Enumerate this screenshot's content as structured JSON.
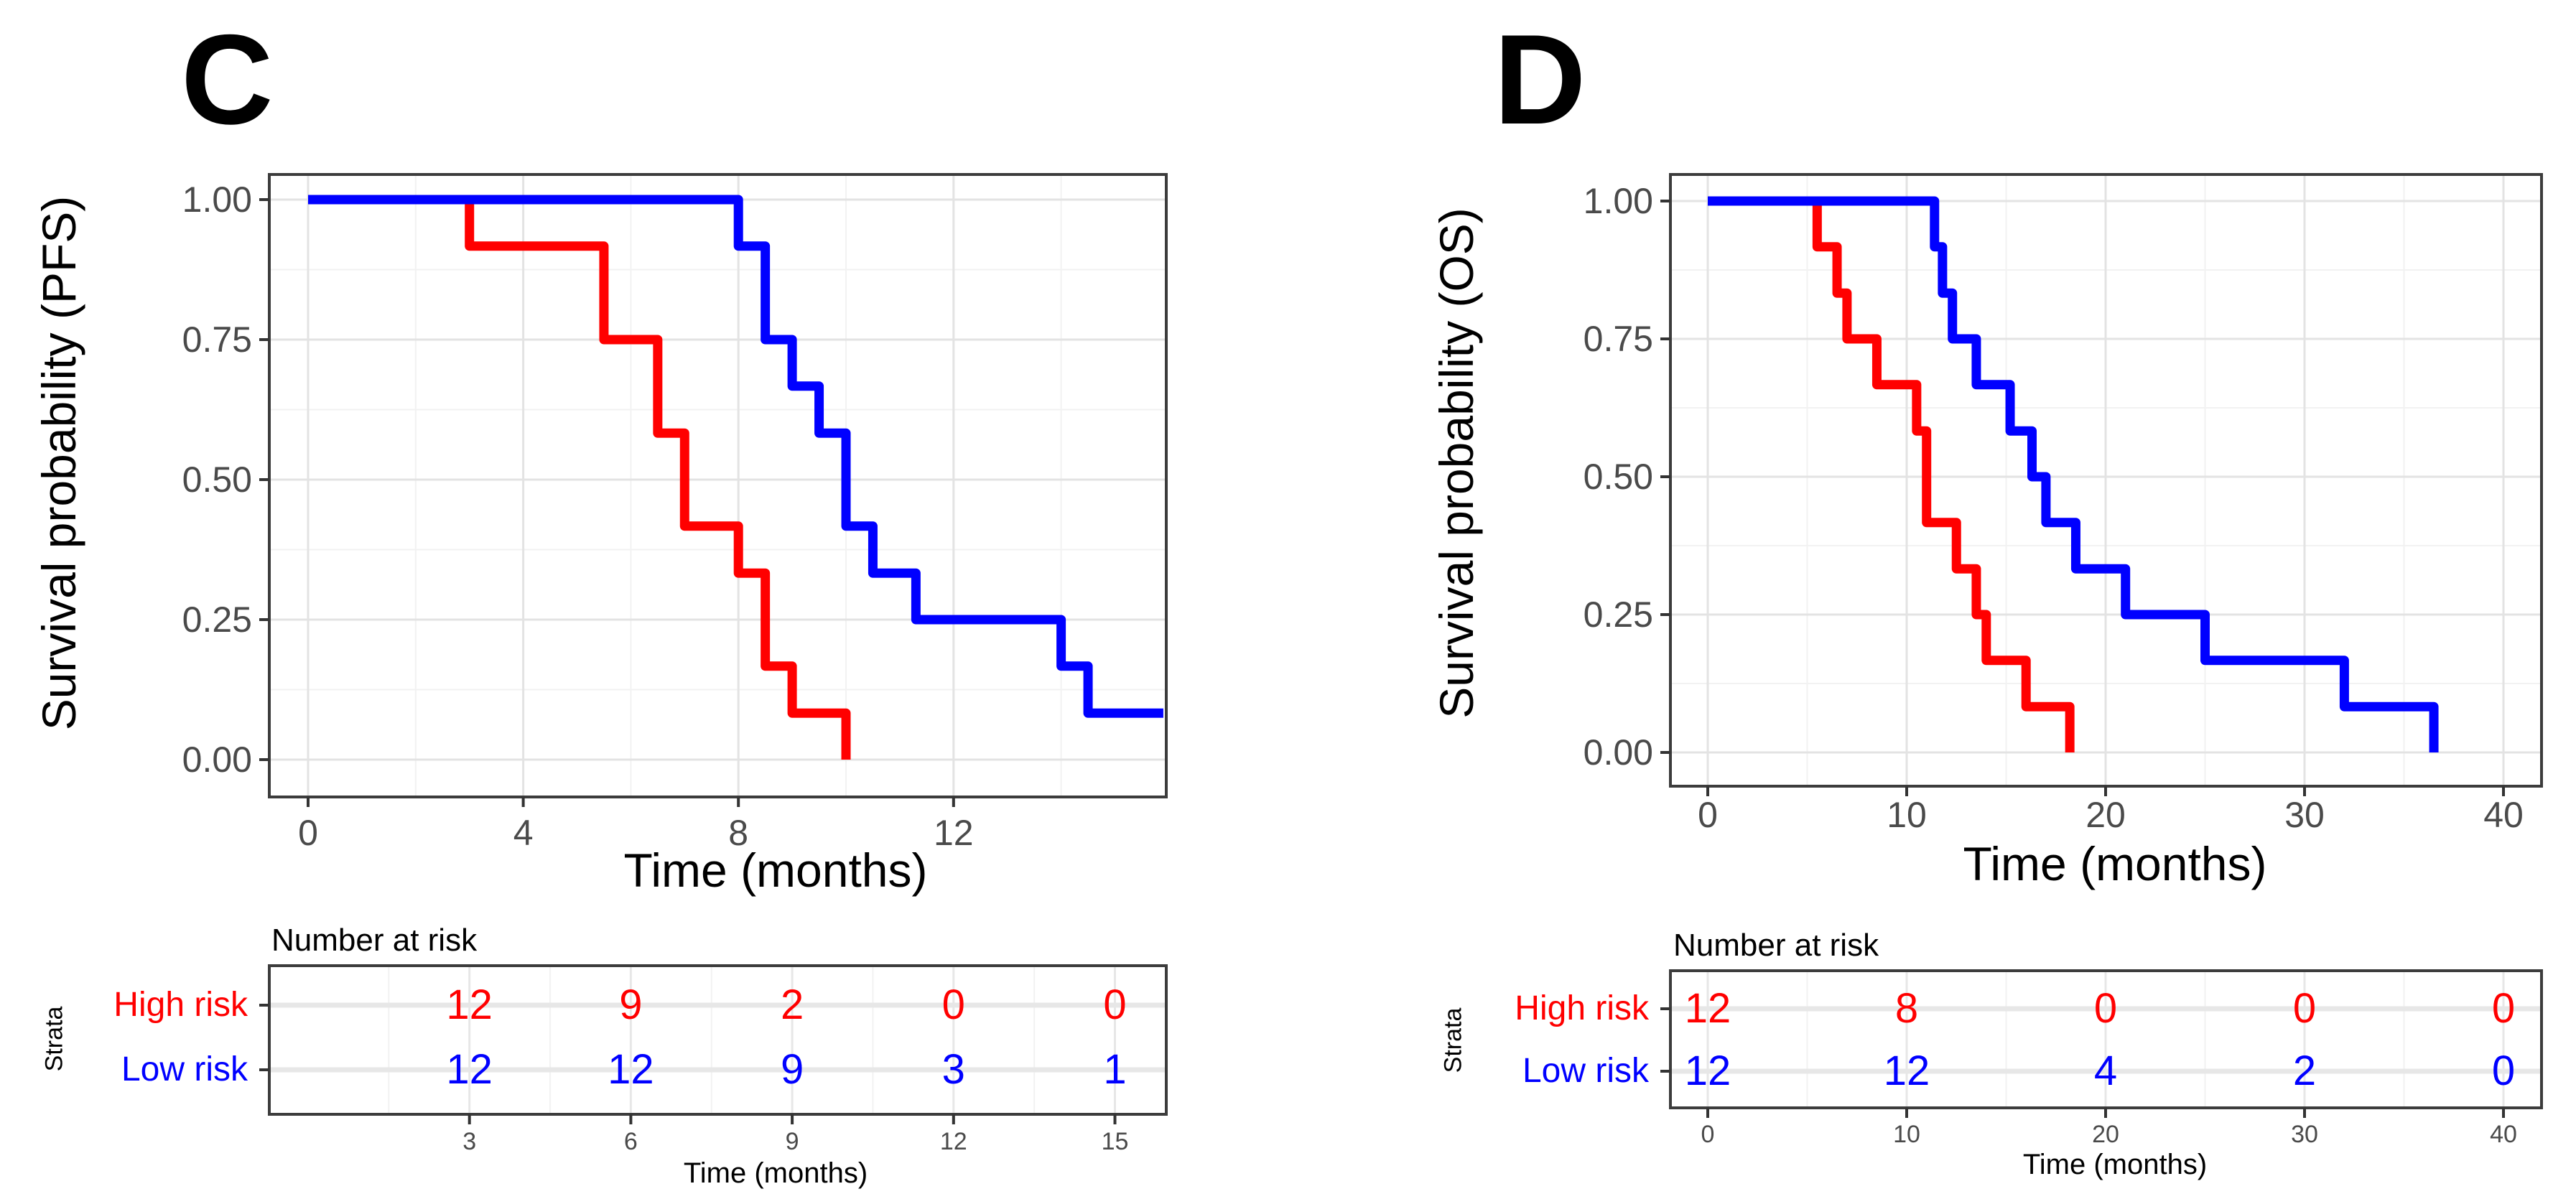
{
  "figure": {
    "background": "#ffffff",
    "high_risk_color": "#FF0000",
    "low_risk_color": "#0000FF",
    "axis_text_color": "#4a4a4a"
  },
  "chart_data": [
    {
      "type": "line",
      "subtype": "kaplan-meier-step",
      "panel_label": "C",
      "ylabel": "Survival probability (PFS)",
      "xlabel": "Time (months)",
      "xlim": [
        -0.7,
        16
      ],
      "ylim": [
        0,
        1
      ],
      "grid": "on",
      "legend_position": "none",
      "x_tick_labels": [
        "0",
        "4",
        "8",
        "12"
      ],
      "x_tick_values": [
        0,
        4,
        8,
        12
      ],
      "x_grid_major": [
        0,
        4,
        8,
        12,
        16
      ],
      "x_grid_minor": [
        2,
        6,
        10,
        14
      ],
      "y_tick_labels": [
        "1.00",
        "0.75",
        "0.50",
        "0.25",
        "0.00"
      ],
      "y_tick_values": [
        1,
        0.75,
        0.5,
        0.25,
        0
      ],
      "y_grid_major": [
        0,
        0.25,
        0.5,
        0.75,
        1
      ],
      "y_grid_minor": [
        0.125,
        0.375,
        0.625,
        0.875
      ],
      "series": [
        {
          "name": "High risk",
          "color": "#FF0000",
          "start": [
            0,
            1.0
          ],
          "drops": [
            [
              3,
              0.917
            ],
            [
              5.5,
              0.75
            ],
            [
              6.5,
              0.583
            ],
            [
              7,
              0.417
            ],
            [
              8,
              0.333
            ],
            [
              8.5,
              0.167
            ],
            [
              9,
              0.083
            ],
            [
              10,
              0
            ]
          ],
          "end_time": 10
        },
        {
          "name": "Low risk",
          "color": "#0000FF",
          "start": [
            0,
            1.0
          ],
          "drops": [
            [
              8,
              0.917
            ],
            [
              8.5,
              0.75
            ],
            [
              9,
              0.667
            ],
            [
              9.5,
              0.583
            ],
            [
              10,
              0.417
            ],
            [
              10.5,
              0.333
            ],
            [
              11.3,
              0.25
            ],
            [
              14,
              0.167
            ],
            [
              14.5,
              0.083
            ]
          ],
          "end_time": 15.9
        }
      ],
      "risk_table": {
        "title": "Number at risk",
        "strata_label": "Strata",
        "xlabel": "Time (months)",
        "time_points": [
          3,
          6,
          9,
          12,
          15
        ],
        "time_tick_labels": [
          "3",
          "6",
          "9",
          "12",
          "15"
        ],
        "rows": [
          {
            "label": "High risk",
            "color": "#FF0000",
            "values": [
              "12",
              "9",
              "2",
              "0",
              "0"
            ]
          },
          {
            "label": "Low risk",
            "color": "#0000FF",
            "values": [
              "12",
              "12",
              "9",
              "3",
              "1"
            ]
          }
        ]
      }
    },
    {
      "type": "line",
      "subtype": "kaplan-meier-step",
      "panel_label": "D",
      "ylabel": "Survival probability (OS)",
      "xlabel": "Time (months)",
      "xlim": [
        -1.9,
        41.9
      ],
      "ylim": [
        0,
        1
      ],
      "grid": "on",
      "legend_position": "none",
      "x_tick_labels": [
        "0",
        "10",
        "20",
        "30",
        "40"
      ],
      "x_tick_values": [
        0,
        10,
        20,
        30,
        40
      ],
      "x_grid_major": [
        0,
        10,
        20,
        30,
        40
      ],
      "x_grid_minor": [
        5,
        15,
        25,
        35
      ],
      "y_tick_labels": [
        "1.00",
        "0.75",
        "0.50",
        "0.25",
        "0.00"
      ],
      "y_tick_values": [
        1,
        0.75,
        0.5,
        0.25,
        0
      ],
      "y_grid_major": [
        0,
        0.25,
        0.5,
        0.75,
        1
      ],
      "y_grid_minor": [
        0.125,
        0.375,
        0.625,
        0.875
      ],
      "series": [
        {
          "name": "High risk",
          "color": "#FF0000",
          "start": [
            0,
            1.0
          ],
          "drops": [
            [
              5.5,
              0.917
            ],
            [
              6.5,
              0.833
            ],
            [
              7,
              0.75
            ],
            [
              8.5,
              0.667
            ],
            [
              10.5,
              0.583
            ],
            [
              11,
              0.417
            ],
            [
              12.5,
              0.333
            ],
            [
              13.5,
              0.25
            ],
            [
              14,
              0.167
            ],
            [
              16,
              0.083
            ],
            [
              18.2,
              0
            ]
          ],
          "end_time": 18.2
        },
        {
          "name": "Low risk",
          "color": "#0000FF",
          "start": [
            0,
            1.0
          ],
          "drops": [
            [
              11.4,
              0.917
            ],
            [
              11.8,
              0.833
            ],
            [
              12.3,
              0.75
            ],
            [
              13.5,
              0.667
            ],
            [
              15.2,
              0.583
            ],
            [
              16.3,
              0.5
            ],
            [
              17,
              0.417
            ],
            [
              18.5,
              0.333
            ],
            [
              21,
              0.25
            ],
            [
              25,
              0.167
            ],
            [
              32,
              0.083
            ],
            [
              36.5,
              0
            ]
          ],
          "end_time": 36.5
        }
      ],
      "risk_table": {
        "title": "Number at risk",
        "strata_label": "Strata",
        "xlabel": "Time (months)",
        "time_points": [
          0,
          10,
          20,
          30,
          40
        ],
        "time_tick_labels": [
          "0",
          "10",
          "20",
          "30",
          "40"
        ],
        "rows": [
          {
            "label": "High risk",
            "color": "#FF0000",
            "values": [
              "12",
              "8",
              "0",
              "0",
              "0"
            ]
          },
          {
            "label": "Low risk",
            "color": "#0000FF",
            "values": [
              "12",
              "12",
              "4",
              "2",
              "0"
            ]
          }
        ]
      }
    }
  ]
}
